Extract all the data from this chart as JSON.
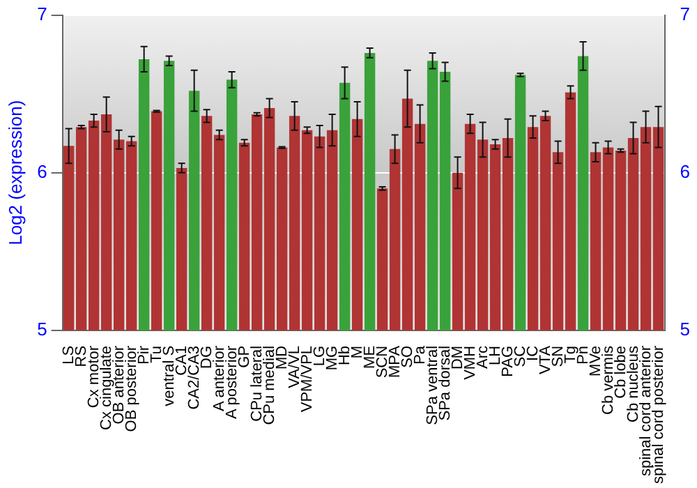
{
  "chart_data": {
    "type": "bar",
    "ylabel": "Log2 (expression)",
    "categories": [
      "LS",
      "RS",
      "Cx motor",
      "Cx cingulate",
      "OB anterior",
      "OB posterior",
      "Pir",
      "Tu",
      "ventral S",
      "CA1",
      "CA2/CA3",
      "DG",
      "A anterior",
      "A posterior",
      "GP",
      "CPu lateral",
      "CPu medial",
      "MD",
      "VA/VL",
      "VPM/VPL",
      "LG",
      "MG",
      "Hb",
      "M",
      "ME",
      "SCN",
      "MPA",
      "SO",
      "Pa",
      "SPa ventral",
      "SPa dorsal",
      "DM",
      "VMH",
      "Arc",
      "LH",
      "PAG",
      "SC",
      "IC",
      "VTA",
      "SN",
      "Tg",
      "Pn",
      "MVe",
      "Cb vermis",
      "Cb lobe",
      "Cb nucleus",
      "spinal cord anterior",
      "spinal cord posterior"
    ],
    "values": [
      6.17,
      6.29,
      6.33,
      6.37,
      6.21,
      6.2,
      6.72,
      6.39,
      6.71,
      6.03,
      6.52,
      6.36,
      6.24,
      6.59,
      6.19,
      6.37,
      6.41,
      6.16,
      6.36,
      6.27,
      6.23,
      6.27,
      6.57,
      6.34,
      6.76,
      5.9,
      6.15,
      6.47,
      6.31,
      6.71,
      6.64,
      6.0,
      6.31,
      6.21,
      6.18,
      6.22,
      6.62,
      6.29,
      6.36,
      6.13,
      6.51,
      6.74,
      6.13,
      6.16,
      6.14,
      6.22,
      6.29,
      6.29
    ],
    "errors": [
      0.11,
      0.01,
      0.04,
      0.11,
      0.06,
      0.03,
      0.08,
      0.005,
      0.03,
      0.03,
      0.13,
      0.04,
      0.03,
      0.05,
      0.02,
      0.01,
      0.06,
      0.005,
      0.09,
      0.02,
      0.07,
      0.1,
      0.1,
      0.11,
      0.03,
      0.01,
      0.09,
      0.18,
      0.12,
      0.05,
      0.06,
      0.1,
      0.06,
      0.11,
      0.03,
      0.12,
      0.01,
      0.07,
      0.03,
      0.07,
      0.04,
      0.09,
      0.06,
      0.04,
      0.01,
      0.1,
      0.1,
      0.13
    ],
    "colors": [
      "#b03434",
      "#b03434",
      "#b03434",
      "#b03434",
      "#b03434",
      "#b03434",
      "#3aa23a",
      "#b03434",
      "#3aa23a",
      "#b03434",
      "#3aa23a",
      "#b03434",
      "#b03434",
      "#3aa23a",
      "#b03434",
      "#b03434",
      "#b03434",
      "#b03434",
      "#b03434",
      "#b03434",
      "#b03434",
      "#b03434",
      "#3aa23a",
      "#b03434",
      "#3aa23a",
      "#b03434",
      "#b03434",
      "#b03434",
      "#b03434",
      "#3aa23a",
      "#3aa23a",
      "#b03434",
      "#b03434",
      "#b03434",
      "#b03434",
      "#b03434",
      "#3aa23a",
      "#b03434",
      "#b03434",
      "#b03434",
      "#b03434",
      "#3aa23a",
      "#b03434",
      "#b03434",
      "#b03434",
      "#b03434",
      "#b03434",
      "#b03434"
    ],
    "ylim": [
      5,
      7
    ],
    "yticks": [
      5,
      6,
      7
    ],
    "y2lim": [
      5,
      7
    ],
    "y2ticks": [
      5,
      6,
      7
    ],
    "grid": "y"
  }
}
